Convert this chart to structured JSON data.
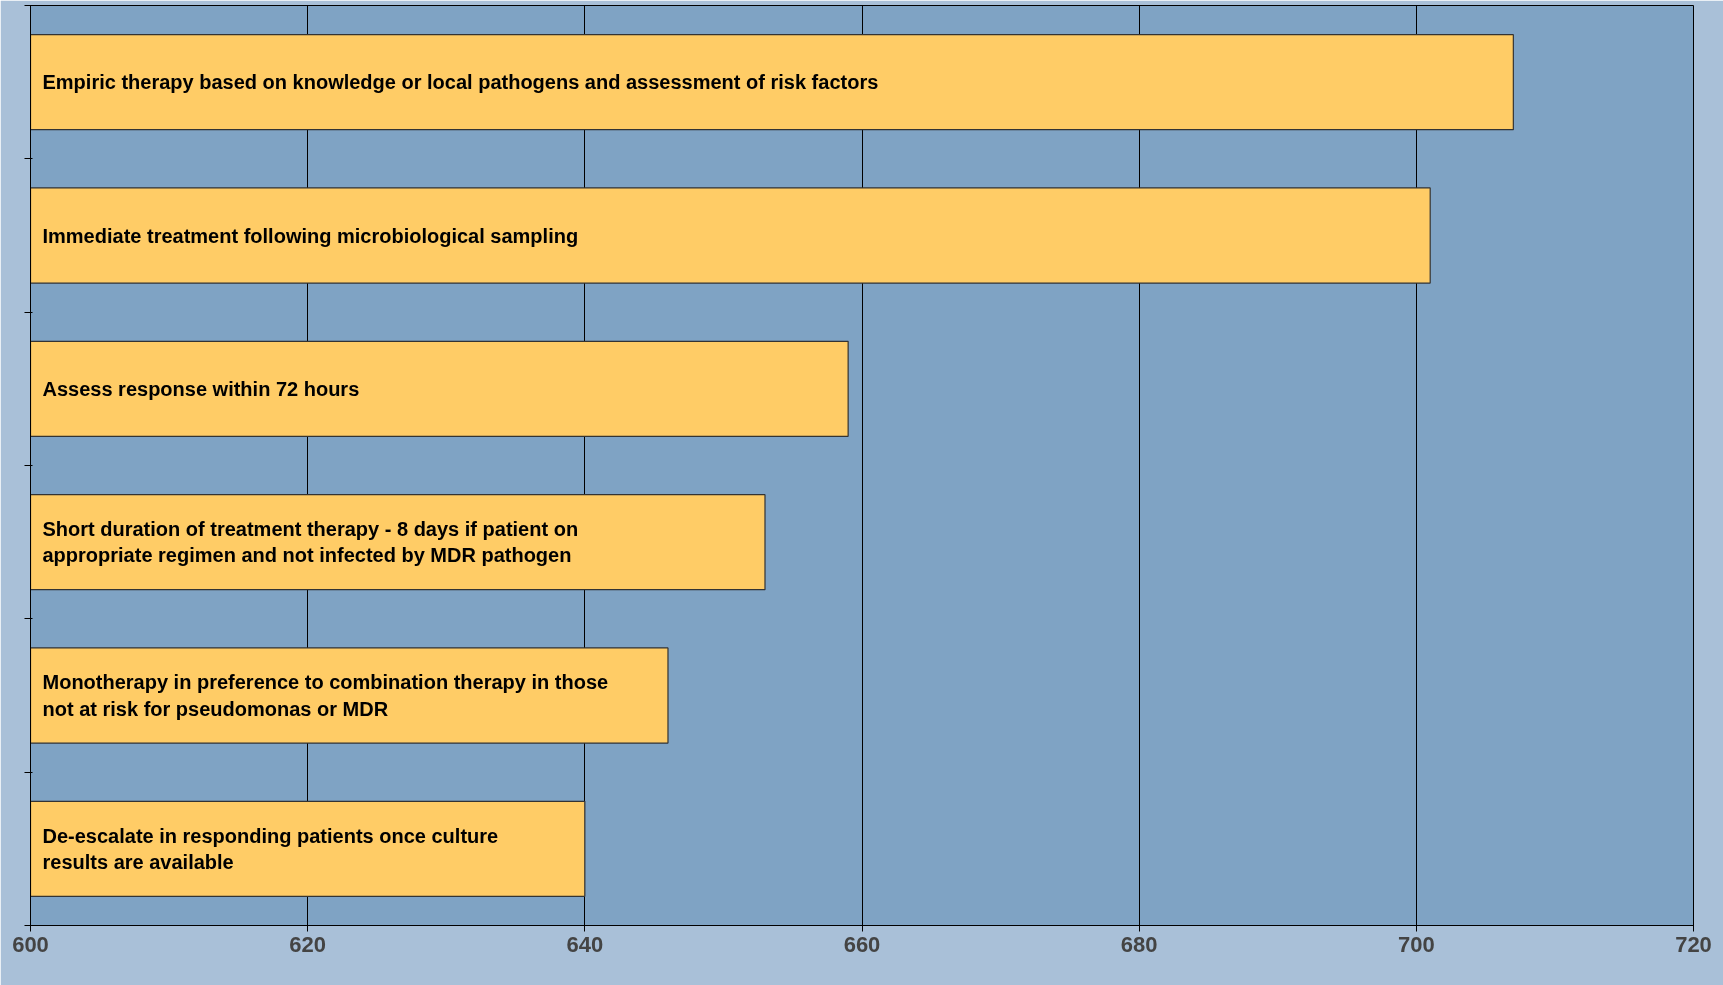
{
  "chart_data": {
    "type": "bar",
    "orientation": "horizontal",
    "categories": [
      "Empiric therapy based on knowledge or local pathogens and assessment of risk factors",
      "Immediate treatment following microbiological sampling",
      "Assess response within 72 hours",
      "Short duration of treatment therapy - 8 days if patient on appropriate regimen and not infected by MDR pathogen",
      "Monotherapy in preference to combination therapy in those not at risk for pseudomonas or MDR",
      "De-escalate in responding patients once culture results are available"
    ],
    "values": [
      707,
      701,
      659,
      653,
      646,
      640
    ],
    "color": "#ffcc66",
    "xlim": [
      600,
      720
    ],
    "xticks": [
      600,
      620,
      640,
      660,
      680,
      700,
      720
    ],
    "grid": "x",
    "tick_labels": "x"
  }
}
